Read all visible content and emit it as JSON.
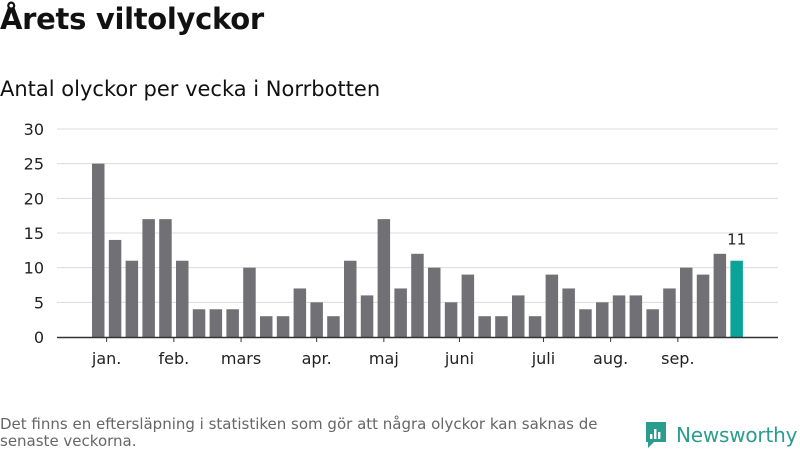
{
  "title": "Årets viltolyckor",
  "subtitle": "Antal olyckor per vecka i Norrbotten",
  "footnote": "Det finns en eftersläpning i statistiken som gör att några olyckor kan saknas de senaste veckorna.",
  "brand": {
    "name": "Newsworthy",
    "icon": "newsworthy-logo-icon",
    "color": "#2a9d8f"
  },
  "colors": {
    "bar": "#717075",
    "highlight": "#0aa399",
    "grid": "#dcdcdc",
    "axis": "#333333"
  },
  "chart_data": {
    "type": "bar",
    "title": "Antal olyckor per vecka i Norrbotten",
    "xlabel": "",
    "ylabel": "",
    "ylim": [
      0,
      30
    ],
    "yticks": [
      0,
      5,
      10,
      15,
      20,
      25,
      30
    ],
    "grid": true,
    "weeks": [
      1,
      2,
      3,
      4,
      5,
      6,
      7,
      8,
      9,
      10,
      11,
      12,
      13,
      14,
      15,
      16,
      17,
      18,
      19,
      20,
      21,
      22,
      23,
      24,
      25,
      26,
      27,
      28,
      29,
      30,
      31,
      32,
      33,
      34,
      35,
      36,
      37,
      38,
      39
    ],
    "values": [
      25,
      14,
      11,
      17,
      17,
      11,
      4,
      4,
      4,
      10,
      3,
      3,
      7,
      5,
      3,
      11,
      6,
      17,
      7,
      12,
      10,
      5,
      9,
      3,
      3,
      6,
      3,
      9,
      7,
      4,
      5,
      6,
      6,
      4,
      7,
      10,
      9,
      12,
      11
    ],
    "highlight_index": 38,
    "highlight_label": "11",
    "month_labels": [
      {
        "label": "jan.",
        "index": 0.5
      },
      {
        "label": "feb.",
        "index": 4.5
      },
      {
        "label": "mars",
        "index": 8.5
      },
      {
        "label": "apr.",
        "index": 13
      },
      {
        "label": "maj",
        "index": 17
      },
      {
        "label": "juni",
        "index": 21.5
      },
      {
        "label": "juli",
        "index": 26.5
      },
      {
        "label": "aug.",
        "index": 30.5
      },
      {
        "label": "sep.",
        "index": 34.5
      }
    ]
  }
}
